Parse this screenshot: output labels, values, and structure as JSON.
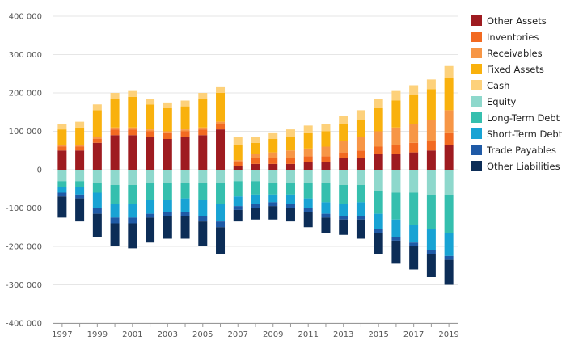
{
  "chart_data": {
    "type": "bar",
    "stacked": true,
    "categories": [
      "1997",
      "1998",
      "1999",
      "2000",
      "2001",
      "2002",
      "2003",
      "2004",
      "2005",
      "2006",
      "2007",
      "2008",
      "2009",
      "2010",
      "2011",
      "2012",
      "2013",
      "2014",
      "2015",
      "2016",
      "2017",
      "2018",
      "2019"
    ],
    "x_tick_labels": [
      "1997",
      "1999",
      "2001",
      "2003",
      "2005",
      "2007",
      "2009",
      "2011",
      "2013",
      "2015",
      "2017",
      "2019"
    ],
    "y_tick_labels": [
      "400 000",
      "300 000",
      "200 000",
      "100 000",
      "0",
      "-100 000",
      "-200 000",
      "-300 000",
      "-400 000"
    ],
    "ylim": [
      -400000,
      400000
    ],
    "grid": true,
    "legend_position": "right",
    "series": [
      {
        "name": "Other Assets",
        "color": "#9e1b20",
        "values": [
          50000,
          50000,
          70000,
          90000,
          90000,
          85000,
          80000,
          85000,
          90000,
          105000,
          10000,
          15000,
          15000,
          15000,
          20000,
          20000,
          30000,
          30000,
          40000,
          40000,
          45000,
          50000,
          65000
        ]
      },
      {
        "name": "Inventories",
        "color": "#f26a21",
        "values": [
          10000,
          10000,
          10000,
          15000,
          15000,
          15000,
          15000,
          15000,
          15000,
          15000,
          10000,
          15000,
          15000,
          15000,
          15000,
          15000,
          15000,
          20000,
          20000,
          25000,
          25000,
          25000,
          30000
        ]
      },
      {
        "name": "Receivables",
        "color": "#f79646",
        "values": [
          5000,
          5000,
          5000,
          5000,
          5000,
          5000,
          5000,
          5000,
          5000,
          5000,
          5000,
          10000,
          15000,
          20000,
          20000,
          25000,
          30000,
          35000,
          40000,
          45000,
          50000,
          55000,
          60000
        ]
      },
      {
        "name": "Fixed Assets",
        "color": "#f9b10d",
        "values": [
          40000,
          45000,
          70000,
          75000,
          80000,
          65000,
          60000,
          60000,
          75000,
          75000,
          40000,
          30000,
          35000,
          35000,
          40000,
          40000,
          45000,
          45000,
          60000,
          70000,
          75000,
          80000,
          85000
        ]
      },
      {
        "name": "Cash",
        "color": "#fdd17b",
        "values": [
          15000,
          15000,
          15000,
          15000,
          15000,
          15000,
          15000,
          15000,
          15000,
          15000,
          20000,
          15000,
          15000,
          20000,
          20000,
          20000,
          20000,
          25000,
          25000,
          25000,
          25000,
          25000,
          30000
        ]
      },
      {
        "name": "Equity",
        "color": "#8ed8cc",
        "values": [
          -30000,
          -30000,
          -35000,
          -40000,
          -40000,
          -35000,
          -35000,
          -35000,
          -35000,
          -35000,
          -30000,
          -30000,
          -35000,
          -35000,
          -35000,
          -35000,
          -40000,
          -40000,
          -55000,
          -60000,
          -60000,
          -65000,
          -65000
        ]
      },
      {
        "name": "Long-Term Debt",
        "color": "#35bfae",
        "values": [
          -15000,
          -15000,
          -25000,
          -50000,
          -50000,
          -45000,
          -45000,
          -40000,
          -45000,
          -55000,
          -40000,
          -35000,
          -30000,
          -30000,
          -40000,
          -50000,
          -50000,
          -45000,
          -60000,
          -70000,
          -85000,
          -90000,
          -100000
        ]
      },
      {
        "name": "Short-Term Debt",
        "color": "#18a3d4",
        "values": [
          -15000,
          -20000,
          -40000,
          -35000,
          -35000,
          -35000,
          -30000,
          -35000,
          -40000,
          -45000,
          -25000,
          -25000,
          -20000,
          -25000,
          -25000,
          -30000,
          -30000,
          -35000,
          -40000,
          -45000,
          -45000,
          -55000,
          -60000
        ]
      },
      {
        "name": "Trade Payables",
        "color": "#1f5aa6",
        "values": [
          -10000,
          -10000,
          -15000,
          -15000,
          -15000,
          -10000,
          -10000,
          -10000,
          -15000,
          -15000,
          -10000,
          -10000,
          -10000,
          -10000,
          -10000,
          -10000,
          -10000,
          -10000,
          -10000,
          -10000,
          -10000,
          -10000,
          -10000
        ]
      },
      {
        "name": "Other Liabilities",
        "color": "#0c2d57",
        "values": [
          -55000,
          -60000,
          -60000,
          -60000,
          -65000,
          -65000,
          -60000,
          -60000,
          -65000,
          -70000,
          -30000,
          -30000,
          -35000,
          -35000,
          -40000,
          -40000,
          -40000,
          -50000,
          -55000,
          -60000,
          -60000,
          -60000,
          -65000
        ]
      }
    ]
  }
}
